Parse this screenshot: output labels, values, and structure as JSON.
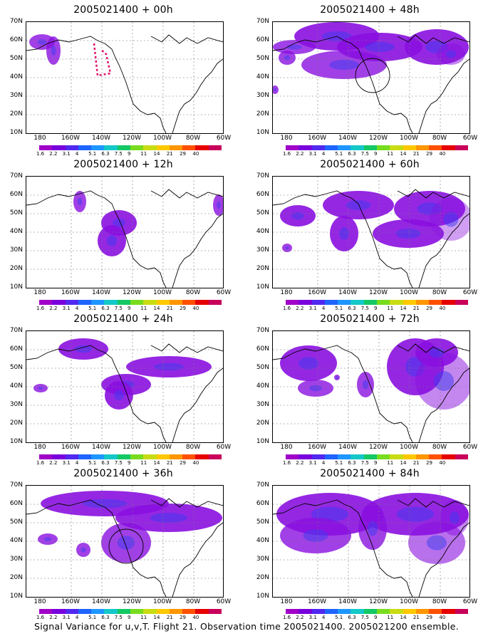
{
  "panels": [
    {
      "title": "2005021400 + 00h",
      "blobs": [
        [
          22,
          28,
          18,
          11,
          0.8
        ],
        [
          38,
          40,
          10,
          20,
          0.8
        ]
      ],
      "flight": true,
      "circle": false
    },
    {
      "title": "2005021400 + 48h",
      "blobs": [
        [
          30,
          35,
          30,
          10,
          0.8
        ],
        [
          90,
          20,
          60,
          20,
          0.9
        ],
        [
          150,
          35,
          60,
          20,
          0.9
        ],
        [
          230,
          35,
          45,
          25,
          0.9
        ],
        [
          250,
          45,
          20,
          15,
          0.5
        ],
        [
          100,
          60,
          60,
          20,
          0.8
        ],
        [
          20,
          50,
          12,
          10,
          0.8
        ],
        [
          3,
          95,
          5,
          6,
          0.8
        ]
      ],
      "flight": false,
      "circle": true
    },
    {
      "title": "2005021400 + 12h",
      "blobs": [
        [
          75,
          35,
          9,
          15,
          0.8
        ],
        [
          130,
          65,
          25,
          18,
          0.9
        ],
        [
          120,
          90,
          20,
          22,
          0.9
        ],
        [
          270,
          40,
          8,
          15,
          0.8
        ]
      ],
      "flight": false,
      "circle": false
    },
    {
      "title": "2005021400 + 60h",
      "blobs": [
        [
          35,
          55,
          25,
          15,
          0.9
        ],
        [
          20,
          100,
          7,
          6,
          0.8
        ],
        [
          120,
          40,
          50,
          20,
          0.9
        ],
        [
          100,
          80,
          20,
          25,
          0.9
        ],
        [
          220,
          45,
          50,
          25,
          0.9
        ],
        [
          250,
          60,
          30,
          30,
          0.4
        ],
        [
          190,
          80,
          50,
          20,
          0.9
        ]
      ],
      "flight": false,
      "circle": false
    },
    {
      "title": "2005021400 + 24h",
      "blobs": [
        [
          80,
          25,
          35,
          15,
          0.9
        ],
        [
          140,
          75,
          35,
          15,
          0.9
        ],
        [
          200,
          50,
          60,
          15,
          0.9
        ],
        [
          130,
          90,
          20,
          20,
          0.9
        ],
        [
          20,
          80,
          10,
          6,
          0.8
        ]
      ],
      "flight": false,
      "circle": false
    },
    {
      "title": "2005021400 + 72h",
      "blobs": [
        [
          50,
          45,
          40,
          25,
          0.9
        ],
        [
          60,
          80,
          25,
          12,
          0.8
        ],
        [
          130,
          75,
          12,
          18,
          0.8
        ],
        [
          90,
          65,
          4,
          4,
          0.8
        ],
        [
          200,
          50,
          40,
          40,
          0.9
        ],
        [
          240,
          70,
          40,
          40,
          0.5
        ],
        [
          230,
          30,
          30,
          20,
          0.9
        ]
      ],
      "flight": false,
      "circle": false
    },
    {
      "title": "2005021400 + 36h",
      "blobs": [
        [
          110,
          25,
          90,
          18,
          0.9
        ],
        [
          200,
          45,
          75,
          20,
          0.9
        ],
        [
          140,
          80,
          35,
          28,
          0.8
        ],
        [
          30,
          75,
          14,
          8,
          0.8
        ],
        [
          80,
          90,
          10,
          10,
          0.8
        ]
      ],
      "flight": false,
      "circle": true
    },
    {
      "title": "2005021400 + 84h",
      "blobs": [
        [
          80,
          40,
          75,
          30,
          0.9
        ],
        [
          200,
          40,
          75,
          30,
          0.9
        ],
        [
          60,
          70,
          50,
          25,
          0.8
        ],
        [
          140,
          60,
          20,
          30,
          0.8
        ],
        [
          230,
          80,
          40,
          30,
          0.6
        ],
        [
          255,
          45,
          20,
          25,
          0.5
        ]
      ],
      "flight": false,
      "circle": false
    }
  ],
  "lat_labels": [
    "70N",
    "60N",
    "50N",
    "40N",
    "30N",
    "20N",
    "10N"
  ],
  "lon_labels": [
    "180",
    "160W",
    "140W",
    "120W",
    "100W",
    "80W",
    "60W"
  ],
  "colorbar": {
    "colors": [
      "#a000c8",
      "#7800dc",
      "#5028f0",
      "#1e64ff",
      "#1e96ff",
      "#14c8c8",
      "#14c864",
      "#78dc1e",
      "#c8dc14",
      "#ffc800",
      "#ff9600",
      "#ff5000",
      "#e60000",
      "#c8005a"
    ],
    "labels": [
      "1.6",
      "2.2",
      "3.1",
      "4",
      "5.1",
      "6.3",
      "7.5",
      "9",
      "11",
      "14",
      "21",
      "29",
      "40",
      ""
    ]
  },
  "caption": "Signal Variance for u,v,T. Flight 21. Observation time 2005021400. 2005021200 ensemble."
}
